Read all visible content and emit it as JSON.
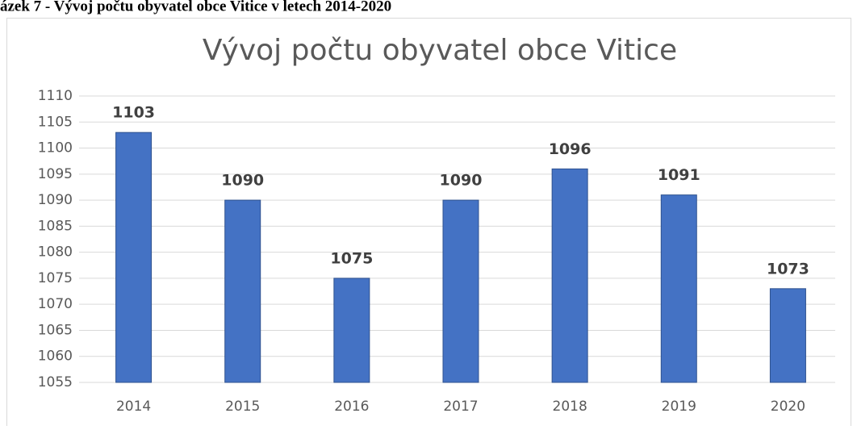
{
  "caption": "ázek 7 - Vývoj počtu obyvatel obce Vitice v letech 2014-2020",
  "chart_data": {
    "type": "bar",
    "title": "Vývoj počtu obyvatel obce Vitice",
    "categories": [
      "2014",
      "2015",
      "2016",
      "2017",
      "2018",
      "2019",
      "2020"
    ],
    "values": [
      1103,
      1090,
      1075,
      1090,
      1096,
      1091,
      1073
    ],
    "color": "#4472c4",
    "ylim": [
      1055,
      1110
    ],
    "yticks": [
      1055,
      1060,
      1065,
      1070,
      1075,
      1080,
      1085,
      1090,
      1095,
      1100,
      1105,
      1110
    ],
    "grid": true
  }
}
